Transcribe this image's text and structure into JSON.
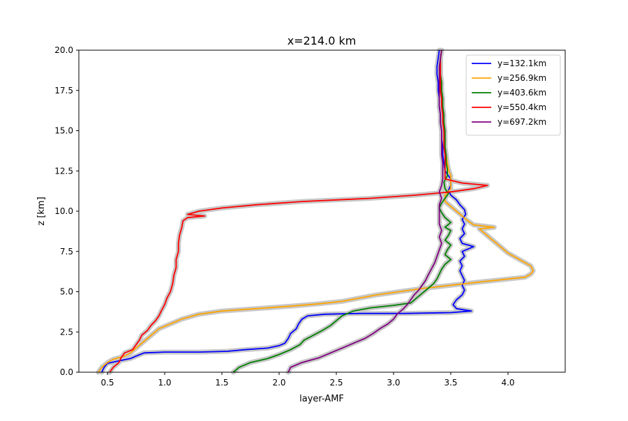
{
  "chart_data": {
    "type": "line",
    "title": "x=214.0 km",
    "xlabel": "layer-AMF",
    "ylabel": "z [km]",
    "xlim": [
      0.25,
      4.5
    ],
    "ylim": [
      0,
      20
    ],
    "x_ticks": [
      0.5,
      1.0,
      1.5,
      2.0,
      2.5,
      3.0,
      3.5,
      4.0
    ],
    "x_tick_labels": [
      "0.5",
      "1.0",
      "1.5",
      "2.0",
      "2.5",
      "3.0",
      "3.5",
      "4.0"
    ],
    "y_ticks": [
      0,
      2.5,
      5,
      7.5,
      10,
      12.5,
      15,
      17.5,
      20
    ],
    "y_tick_labels": [
      "0.0",
      "2.5",
      "5.0",
      "7.5",
      "10.0",
      "12.5",
      "15.0",
      "17.5",
      "20.0"
    ],
    "grid": false,
    "legend_position": "top-right",
    "uncertainty_band_color": "#c8c8c8",
    "series": [
      {
        "name": "y=132.1km",
        "color": "#0000ff",
        "points": [
          [
            0.45,
            0
          ],
          [
            0.47,
            0.3
          ],
          [
            0.5,
            0.55
          ],
          [
            0.6,
            0.7
          ],
          [
            0.7,
            0.85
          ],
          [
            0.75,
            1.0
          ],
          [
            0.82,
            1.2
          ],
          [
            1.0,
            1.25
          ],
          [
            1.3,
            1.25
          ],
          [
            1.55,
            1.3
          ],
          [
            1.7,
            1.4
          ],
          [
            1.9,
            1.5
          ],
          [
            2.0,
            1.65
          ],
          [
            2.05,
            1.8
          ],
          [
            2.08,
            2.1
          ],
          [
            2.1,
            2.4
          ],
          [
            2.15,
            2.7
          ],
          [
            2.17,
            3.0
          ],
          [
            2.2,
            3.3
          ],
          [
            2.25,
            3.5
          ],
          [
            2.4,
            3.6
          ],
          [
            2.7,
            3.65
          ],
          [
            3.1,
            3.65
          ],
          [
            3.5,
            3.7
          ],
          [
            3.68,
            3.8
          ],
          [
            3.55,
            3.95
          ],
          [
            3.52,
            4.2
          ],
          [
            3.55,
            4.5
          ],
          [
            3.6,
            4.8
          ],
          [
            3.62,
            5.1
          ],
          [
            3.6,
            5.4
          ],
          [
            3.62,
            5.7
          ],
          [
            3.6,
            6.0
          ],
          [
            3.58,
            6.3
          ],
          [
            3.6,
            6.6
          ],
          [
            3.58,
            6.9
          ],
          [
            3.62,
            7.2
          ],
          [
            3.6,
            7.5
          ],
          [
            3.7,
            7.8
          ],
          [
            3.6,
            8.0
          ],
          [
            3.58,
            8.3
          ],
          [
            3.62,
            8.6
          ],
          [
            3.6,
            8.9
          ],
          [
            3.62,
            9.2
          ],
          [
            3.6,
            9.5
          ],
          [
            3.63,
            9.8
          ],
          [
            3.62,
            10.1
          ],
          [
            3.58,
            10.4
          ],
          [
            3.55,
            10.7
          ],
          [
            3.5,
            11.0
          ],
          [
            3.48,
            11.3
          ],
          [
            3.5,
            11.6
          ],
          [
            3.5,
            12.0
          ],
          [
            3.45,
            12.5
          ],
          [
            3.44,
            13.0
          ],
          [
            3.43,
            13.5
          ],
          [
            3.43,
            14.0
          ],
          [
            3.42,
            14.5
          ],
          [
            3.42,
            15.0
          ],
          [
            3.41,
            15.5
          ],
          [
            3.41,
            16.0
          ],
          [
            3.4,
            16.5
          ],
          [
            3.4,
            17.0
          ],
          [
            3.39,
            17.5
          ],
          [
            3.39,
            18.0
          ],
          [
            3.38,
            18.5
          ],
          [
            3.38,
            19.0
          ],
          [
            3.39,
            19.5
          ],
          [
            3.4,
            20.0
          ]
        ]
      },
      {
        "name": "y=256.9km",
        "color": "#ffa500",
        "points": [
          [
            0.42,
            0
          ],
          [
            0.45,
            0.3
          ],
          [
            0.5,
            0.6
          ],
          [
            0.55,
            0.8
          ],
          [
            0.65,
            1.0
          ],
          [
            0.7,
            1.2
          ],
          [
            0.75,
            1.5
          ],
          [
            0.8,
            1.8
          ],
          [
            0.85,
            2.1
          ],
          [
            0.9,
            2.4
          ],
          [
            0.95,
            2.7
          ],
          [
            1.05,
            3.0
          ],
          [
            1.15,
            3.3
          ],
          [
            1.3,
            3.6
          ],
          [
            1.5,
            3.8
          ],
          [
            1.8,
            3.95
          ],
          [
            2.1,
            4.1
          ],
          [
            2.35,
            4.25
          ],
          [
            2.55,
            4.4
          ],
          [
            2.7,
            4.6
          ],
          [
            2.85,
            4.8
          ],
          [
            3.05,
            5.0
          ],
          [
            3.25,
            5.2
          ],
          [
            3.5,
            5.4
          ],
          [
            3.75,
            5.6
          ],
          [
            3.95,
            5.75
          ],
          [
            4.15,
            5.9
          ],
          [
            4.2,
            6.1
          ],
          [
            4.22,
            6.3
          ],
          [
            4.2,
            6.6
          ],
          [
            4.1,
            7.0
          ],
          [
            4.0,
            7.4
          ],
          [
            3.95,
            7.7
          ],
          [
            3.9,
            8.0
          ],
          [
            3.85,
            8.3
          ],
          [
            3.8,
            8.6
          ],
          [
            3.75,
            8.9
          ],
          [
            3.88,
            9.0
          ],
          [
            3.7,
            9.15
          ],
          [
            3.65,
            9.4
          ],
          [
            3.6,
            9.7
          ],
          [
            3.55,
            10.0
          ],
          [
            3.5,
            10.3
          ],
          [
            3.45,
            10.6
          ],
          [
            3.45,
            11.0
          ],
          [
            3.5,
            11.4
          ],
          [
            3.5,
            11.8
          ],
          [
            3.5,
            12.2
          ],
          [
            3.48,
            12.6
          ],
          [
            3.47,
            13.0
          ],
          [
            3.46,
            13.5
          ],
          [
            3.45,
            14.0
          ],
          [
            3.45,
            14.5
          ],
          [
            3.44,
            15.0
          ],
          [
            3.44,
            15.5
          ],
          [
            3.43,
            16.0
          ],
          [
            3.43,
            16.5
          ],
          [
            3.42,
            17.0
          ],
          [
            3.42,
            17.5
          ],
          [
            3.42,
            18.0
          ],
          [
            3.41,
            18.5
          ],
          [
            3.41,
            19.0
          ],
          [
            3.41,
            19.5
          ],
          [
            3.42,
            20.0
          ]
        ]
      },
      {
        "name": "y=403.6km",
        "color": "#008000",
        "points": [
          [
            1.6,
            0
          ],
          [
            1.65,
            0.3
          ],
          [
            1.75,
            0.6
          ],
          [
            1.9,
            0.85
          ],
          [
            2.0,
            1.1
          ],
          [
            2.1,
            1.4
          ],
          [
            2.18,
            1.7
          ],
          [
            2.22,
            2.0
          ],
          [
            2.3,
            2.3
          ],
          [
            2.38,
            2.6
          ],
          [
            2.45,
            2.9
          ],
          [
            2.5,
            3.2
          ],
          [
            2.55,
            3.5
          ],
          [
            2.65,
            3.8
          ],
          [
            2.8,
            4.0
          ],
          [
            3.0,
            4.15
          ],
          [
            3.15,
            4.3
          ],
          [
            3.2,
            4.6
          ],
          [
            3.25,
            4.9
          ],
          [
            3.3,
            5.2
          ],
          [
            3.35,
            5.5
          ],
          [
            3.38,
            5.8
          ],
          [
            3.4,
            6.1
          ],
          [
            3.42,
            6.4
          ],
          [
            3.45,
            6.7
          ],
          [
            3.5,
            7.0
          ],
          [
            3.45,
            7.3
          ],
          [
            3.47,
            7.6
          ],
          [
            3.5,
            7.9
          ],
          [
            3.45,
            8.2
          ],
          [
            3.48,
            8.5
          ],
          [
            3.5,
            8.8
          ],
          [
            3.45,
            9.0
          ],
          [
            3.5,
            9.3
          ],
          [
            3.45,
            9.6
          ],
          [
            3.42,
            9.9
          ],
          [
            3.4,
            10.2
          ],
          [
            3.42,
            10.5
          ],
          [
            3.45,
            10.8
          ],
          [
            3.48,
            11.1
          ],
          [
            3.45,
            11.4
          ],
          [
            3.44,
            11.8
          ],
          [
            3.47,
            12.2
          ],
          [
            3.47,
            12.6
          ],
          [
            3.46,
            13.0
          ],
          [
            3.46,
            13.5
          ],
          [
            3.45,
            14.0
          ],
          [
            3.45,
            14.5
          ],
          [
            3.45,
            15.0
          ],
          [
            3.44,
            15.5
          ],
          [
            3.44,
            16.0
          ],
          [
            3.43,
            16.5
          ],
          [
            3.43,
            17.0
          ],
          [
            3.42,
            17.5
          ],
          [
            3.42,
            18.0
          ],
          [
            3.41,
            18.5
          ],
          [
            3.41,
            19.0
          ],
          [
            3.41,
            19.5
          ],
          [
            3.42,
            20.0
          ]
        ]
      },
      {
        "name": "y=550.4km",
        "color": "#ff0000",
        "points": [
          [
            0.52,
            0
          ],
          [
            0.55,
            0.3
          ],
          [
            0.6,
            0.6
          ],
          [
            0.62,
            0.9
          ],
          [
            0.65,
            1.2
          ],
          [
            0.72,
            1.4
          ],
          [
            0.75,
            1.7
          ],
          [
            0.78,
            2.0
          ],
          [
            0.8,
            2.3
          ],
          [
            0.85,
            2.6
          ],
          [
            0.88,
            2.9
          ],
          [
            0.92,
            3.2
          ],
          [
            0.95,
            3.5
          ],
          [
            0.97,
            3.8
          ],
          [
            1.0,
            4.2
          ],
          [
            1.02,
            4.6
          ],
          [
            1.05,
            5.0
          ],
          [
            1.07,
            5.5
          ],
          [
            1.08,
            6.0
          ],
          [
            1.1,
            6.5
          ],
          [
            1.1,
            7.0
          ],
          [
            1.12,
            7.5
          ],
          [
            1.12,
            8.0
          ],
          [
            1.13,
            8.5
          ],
          [
            1.15,
            9.0
          ],
          [
            1.16,
            9.4
          ],
          [
            1.2,
            9.6
          ],
          [
            1.35,
            9.7
          ],
          [
            1.2,
            9.8
          ],
          [
            1.3,
            10.0
          ],
          [
            1.5,
            10.2
          ],
          [
            1.8,
            10.4
          ],
          [
            2.2,
            10.6
          ],
          [
            2.8,
            10.8
          ],
          [
            3.2,
            11.0
          ],
          [
            3.5,
            11.2
          ],
          [
            3.7,
            11.4
          ],
          [
            3.82,
            11.6
          ],
          [
            3.6,
            11.75
          ],
          [
            3.45,
            12.0
          ],
          [
            3.45,
            12.5
          ],
          [
            3.45,
            13.0
          ],
          [
            3.45,
            13.5
          ],
          [
            3.44,
            14.0
          ],
          [
            3.44,
            14.5
          ],
          [
            3.44,
            15.0
          ],
          [
            3.43,
            15.5
          ],
          [
            3.43,
            16.0
          ],
          [
            3.42,
            16.5
          ],
          [
            3.42,
            17.0
          ],
          [
            3.41,
            17.5
          ],
          [
            3.41,
            18.0
          ],
          [
            3.41,
            18.5
          ],
          [
            3.41,
            19.0
          ],
          [
            3.41,
            19.5
          ],
          [
            3.42,
            20.0
          ]
        ]
      },
      {
        "name": "y=697.2km",
        "color": "#800080",
        "points": [
          [
            2.08,
            0
          ],
          [
            2.1,
            0.3
          ],
          [
            2.2,
            0.6
          ],
          [
            2.35,
            0.9
          ],
          [
            2.45,
            1.2
          ],
          [
            2.55,
            1.5
          ],
          [
            2.65,
            1.8
          ],
          [
            2.75,
            2.1
          ],
          [
            2.82,
            2.4
          ],
          [
            2.88,
            2.7
          ],
          [
            2.95,
            3.0
          ],
          [
            3.0,
            3.3
          ],
          [
            3.03,
            3.6
          ],
          [
            3.08,
            3.9
          ],
          [
            3.12,
            4.2
          ],
          [
            3.15,
            4.5
          ],
          [
            3.18,
            4.8
          ],
          [
            3.22,
            5.1
          ],
          [
            3.25,
            5.4
          ],
          [
            3.28,
            5.7
          ],
          [
            3.3,
            6.0
          ],
          [
            3.33,
            6.4
          ],
          [
            3.36,
            6.8
          ],
          [
            3.38,
            7.2
          ],
          [
            3.4,
            7.6
          ],
          [
            3.42,
            8.0
          ],
          [
            3.4,
            8.4
          ],
          [
            3.42,
            8.8
          ],
          [
            3.4,
            9.2
          ],
          [
            3.4,
            9.6
          ],
          [
            3.4,
            10.0
          ],
          [
            3.4,
            10.4
          ],
          [
            3.42,
            10.8
          ],
          [
            3.4,
            11.2
          ],
          [
            3.42,
            11.6
          ],
          [
            3.43,
            12.0
          ],
          [
            3.43,
            12.5
          ],
          [
            3.43,
            13.0
          ],
          [
            3.42,
            13.5
          ],
          [
            3.42,
            14.0
          ],
          [
            3.42,
            14.5
          ],
          [
            3.42,
            15.0
          ],
          [
            3.41,
            15.5
          ],
          [
            3.41,
            16.0
          ],
          [
            3.4,
            16.5
          ],
          [
            3.4,
            17.0
          ],
          [
            3.4,
            17.5
          ],
          [
            3.4,
            18.0
          ],
          [
            3.4,
            18.5
          ],
          [
            3.4,
            19.0
          ],
          [
            3.41,
            19.5
          ],
          [
            3.42,
            20.0
          ]
        ]
      }
    ]
  }
}
